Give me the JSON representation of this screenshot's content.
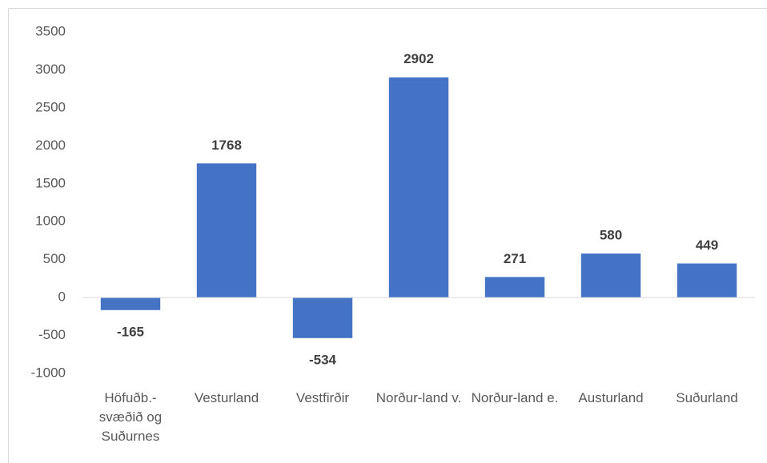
{
  "chart_data": {
    "type": "bar",
    "categories": [
      "Höfuðb.-svæðið og Suðurnes",
      "Vesturland",
      "Vestfirðir",
      "Norður-land v.",
      "Norður-land e.",
      "Austurland",
      "Suðurland"
    ],
    "values": [
      -165,
      1768,
      -534,
      2902,
      271,
      580,
      449
    ],
    "color": "#4472c4",
    "ylim": [
      -1000,
      3500
    ],
    "yticks": [
      -1000,
      -500,
      0,
      500,
      1000,
      1500,
      2000,
      2500,
      3000,
      3500
    ],
    "grid": false
  }
}
